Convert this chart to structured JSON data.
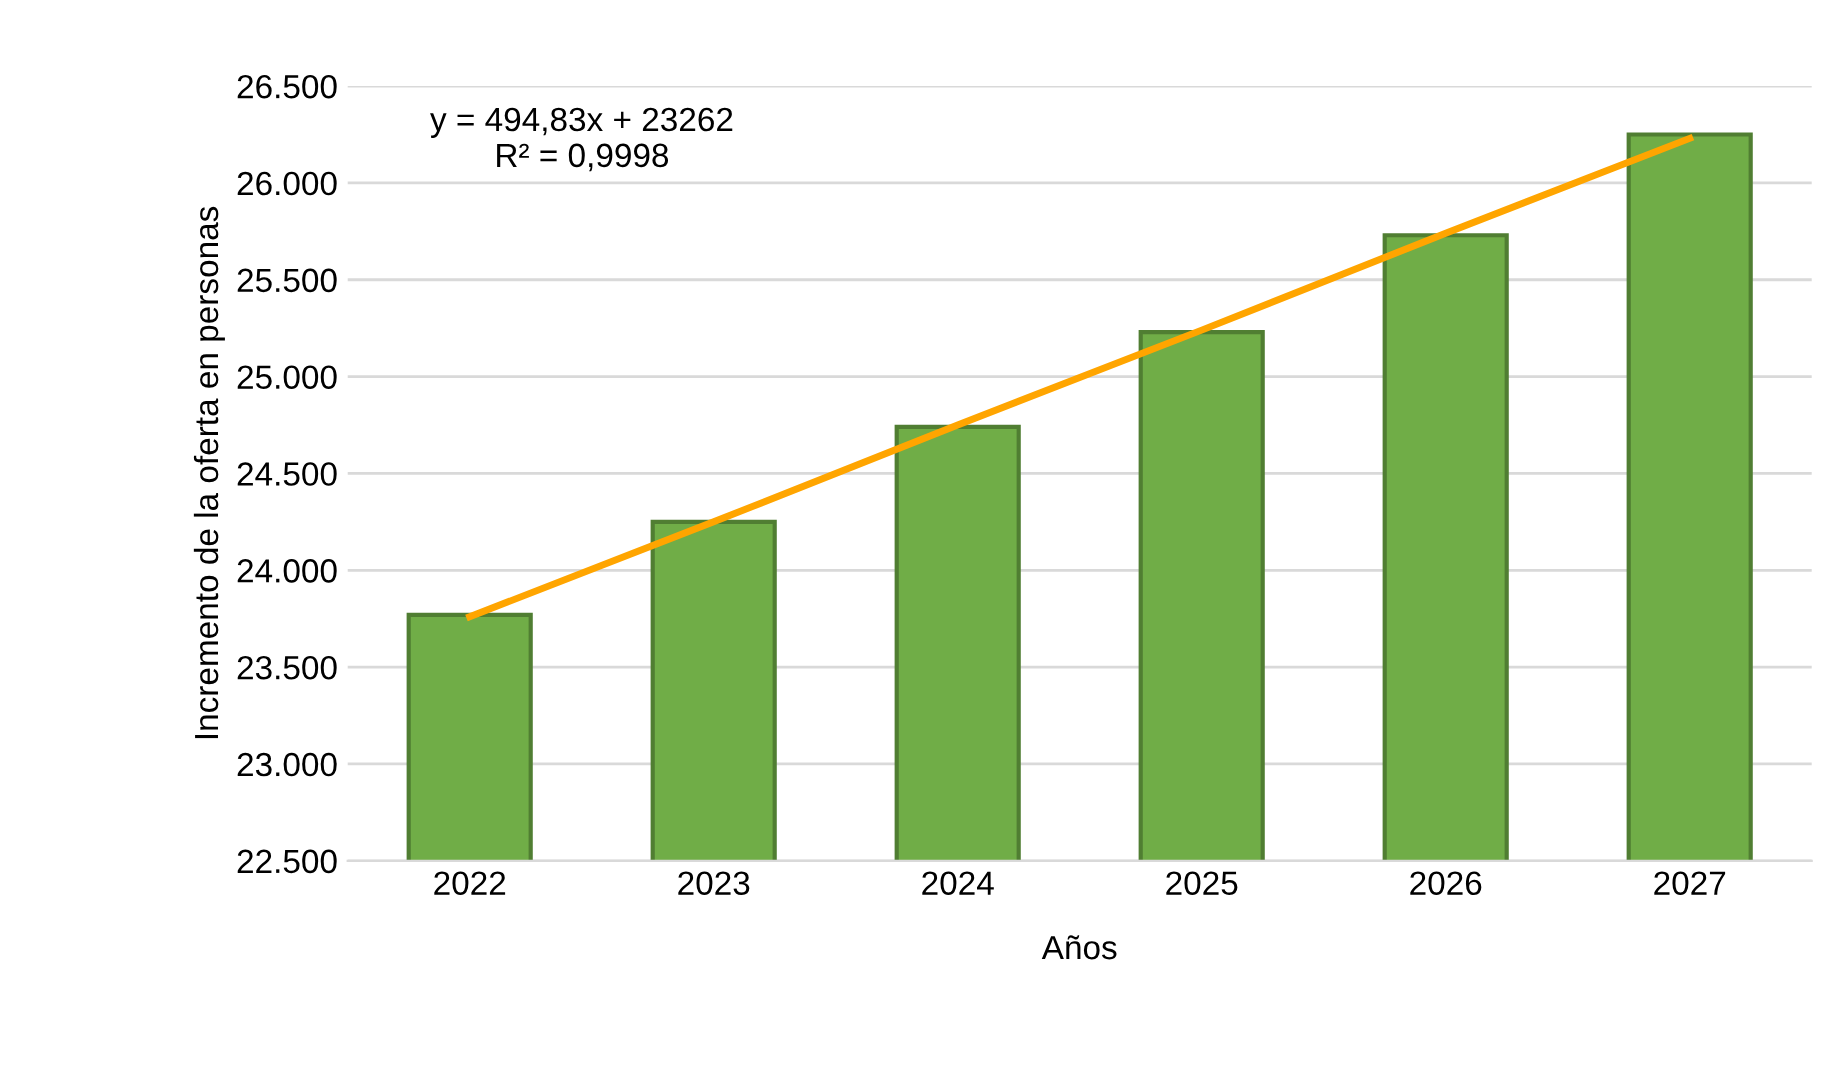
{
  "chart_data": {
    "type": "bar",
    "xlabel": "Años",
    "ylabel": "Incremento de la oferta en personas",
    "categories": [
      "2022",
      "2023",
      "2024",
      "2025",
      "2026",
      "2027"
    ],
    "series": [
      {
        "color": "#70ad47",
        "values": [
          23770,
          24250,
          24740,
          25230,
          25730,
          26250
        ]
      },
      {
        "type": "line",
        "color": "#ffa500",
        "values": [
          23760,
          24250,
          24750,
          25240,
          25740,
          26230
        ]
      }
    ],
    "ylim": [
      22500,
      26500
    ],
    "yticks": [
      {
        "value": 22500,
        "label": "22.500"
      },
      {
        "value": 23000,
        "label": "23.000"
      },
      {
        "value": 23500,
        "label": "23.500"
      },
      {
        "value": 24000,
        "label": "24.000"
      },
      {
        "value": 24500,
        "label": "24.500"
      },
      {
        "value": 25000,
        "label": "25.000"
      },
      {
        "value": 25500,
        "label": "25.500"
      },
      {
        "value": 26000,
        "label": "26.000"
      },
      {
        "value": 26500,
        "label": "26.500"
      }
    ],
    "grid": "y",
    "annotations": [
      "y = 494,83x + 23262\nR² = 0,9998"
    ]
  }
}
